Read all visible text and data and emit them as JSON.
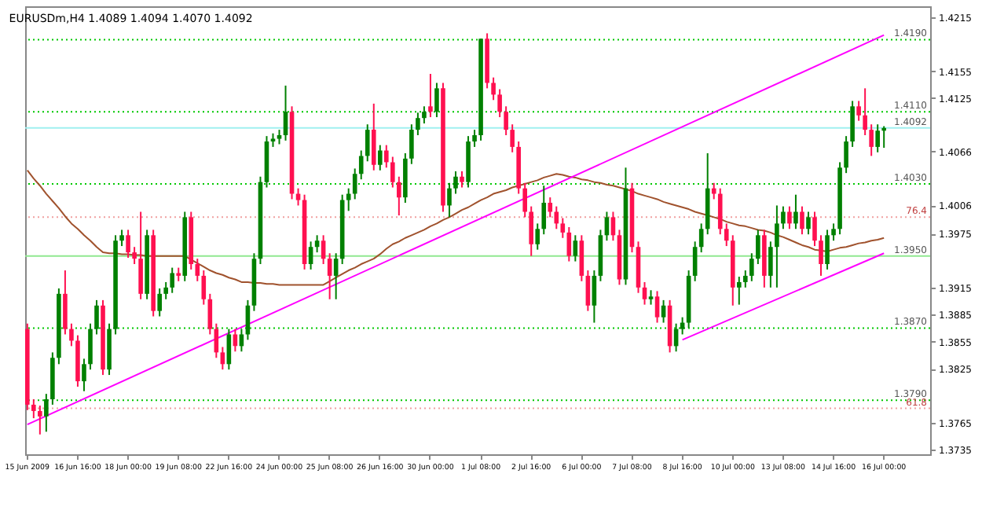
{
  "chart_data": {
    "type": "candlestick",
    "title": "EURUSDm,H4 1.4089 1.4094 1.4070 1.4092",
    "categories": [
      "15 Jun 2009",
      null,
      null,
      null,
      null,
      null,
      null,
      null,
      "16 Jun 16:00",
      null,
      null,
      null,
      null,
      null,
      null,
      null,
      "18 Jun 00:00",
      null,
      null,
      null,
      null,
      null,
      null,
      null,
      "19 Jun 08:00",
      null,
      null,
      null,
      null,
      null,
      null,
      null,
      "22 Jun 16:00",
      null,
      null,
      null,
      null,
      null,
      null,
      null,
      "24 Jun 00:00",
      null,
      null,
      null,
      null,
      null,
      null,
      null,
      "25 Jun 08:00",
      null,
      null,
      null,
      null,
      null,
      null,
      null,
      "26 Jun 16:00",
      null,
      null,
      null,
      null,
      null,
      null,
      null,
      "30 Jun 00:00",
      null,
      null,
      null,
      null,
      null,
      null,
      null,
      "1 Jul 08:00",
      null,
      null,
      null,
      null,
      null,
      null,
      null,
      "2 Jul 16:00",
      null,
      null,
      null,
      null,
      null,
      null,
      null,
      "6 Jul 00:00",
      null,
      null,
      null,
      null,
      null,
      null,
      null,
      "7 Jul 08:00",
      null,
      null,
      null,
      null,
      null,
      null,
      null,
      "8 Jul 16:00",
      null,
      null,
      null,
      null,
      null,
      null,
      null,
      "10 Jul 00:00",
      null,
      null,
      null,
      null,
      null,
      null,
      null,
      "13 Jul 08:00",
      null,
      null,
      null,
      null,
      null,
      null,
      null,
      "14 Jul 16:00",
      null,
      null,
      null,
      null,
      null,
      null,
      null,
      "16 Jul 00:00"
    ],
    "colors": [
      "#ff1050",
      "#ff1050",
      "#ff1050",
      "#008000",
      "#008000",
      "#008000",
      "#ff1050",
      "#ff1050",
      "#ff1050",
      "#008000",
      "#008000",
      "#008000",
      "#ff1050",
      "#008000",
      "#008000",
      "#008000",
      "#ff1050",
      "#ff1050",
      "#ff1050",
      "#008000",
      "#ff1050",
      "#008000",
      "#008000",
      "#008000",
      "#ff1050",
      "#008000",
      "#ff1050",
      "#ff1050",
      "#ff1050",
      "#ff1050",
      "#ff1050",
      "#ff1050",
      "#008000",
      "#ff1050",
      "#008000",
      "#008000",
      "#008000",
      "#008000",
      "#008000",
      "#008000",
      "#008000",
      "#008000",
      "#ff1050",
      "#ff1050",
      "#ff1050",
      "#008000",
      "#008000",
      "#ff1050",
      "#ff1050",
      "#008000",
      "#008000",
      "#008000",
      "#008000",
      "#008000",
      "#008000",
      "#ff1050",
      "#008000",
      "#ff1050",
      "#ff1050",
      "#ff1050",
      "#008000",
      "#008000",
      "#008000",
      "#008000",
      "#ff1050",
      "#008000",
      "#ff1050",
      "#008000",
      "#008000",
      "#ff1050",
      "#008000",
      "#008000",
      "#008000",
      "#ff1050",
      "#ff1050",
      "#ff1050",
      "#ff1050",
      "#ff1050",
      "#ff1050",
      "#ff1050",
      "#ff1050",
      "#008000",
      "#008000",
      "#ff1050",
      "#ff1050",
      "#ff1050",
      "#ff1050",
      "#008000",
      "#ff1050",
      "#ff1050",
      "#008000",
      "#008000",
      "#008000",
      "#ff1050",
      "#ff1050",
      "#008000",
      "#ff1050",
      "#ff1050",
      "#ff1050",
      "#008000",
      "#ff1050",
      "#008000",
      "#ff1050",
      "#008000",
      "#008000",
      "#008000",
      "#008000",
      "#008000",
      "#008000",
      "#ff1050",
      "#ff1050",
      "#ff1050",
      "#ff1050",
      "#008000",
      "#008000",
      "#008000",
      "#008000",
      "#ff1050",
      "#008000",
      "#008000",
      "#008000",
      "#ff1050",
      "#008000",
      "#ff1050",
      "#008000",
      "#ff1050",
      "#ff1050",
      "#008000",
      "#008000",
      "#008000",
      "#008000",
      "#008000",
      "#ff1050",
      "#ff1050",
      "#ff1050",
      "#008000",
      "#008000"
    ],
    "annotations": [
      {
        "text": "76.4",
        "y": 1.3993
      },
      {
        "text": "61.8",
        "y": 1.3781
      }
    ],
    "ohlc": [
      [
        1.3869,
        1.3875,
        1.3779,
        1.3785
      ],
      [
        1.3785,
        1.3791,
        1.377,
        1.3778
      ],
      [
        1.3778,
        1.3784,
        1.3752,
        1.3772
      ],
      [
        1.3772,
        1.3797,
        1.3755,
        1.3791
      ],
      [
        1.3791,
        1.3843,
        1.3785,
        1.3837
      ],
      [
        1.3837,
        1.3914,
        1.383,
        1.3908
      ],
      [
        1.3908,
        1.3934,
        1.3863,
        1.3869
      ],
      [
        1.3869,
        1.3875,
        1.385,
        1.3856
      ],
      [
        1.3856,
        1.3862,
        1.3805,
        1.3811
      ],
      [
        1.3811,
        1.3836,
        1.38,
        1.383
      ],
      [
        1.383,
        1.3875,
        1.3824,
        1.3869
      ],
      [
        1.3869,
        1.3901,
        1.3863,
        1.3895
      ],
      [
        1.3895,
        1.3901,
        1.3818,
        1.3824
      ],
      [
        1.3824,
        1.3875,
        1.3818,
        1.3869
      ],
      [
        1.3869,
        1.3973,
        1.3863,
        1.3967
      ],
      [
        1.3967,
        1.3979,
        1.3961,
        1.3973
      ],
      [
        1.3973,
        1.3979,
        1.3948,
        1.3954
      ],
      [
        1.3954,
        1.396,
        1.3941,
        1.3947
      ],
      [
        1.3947,
        1.3999,
        1.3902,
        1.3908
      ],
      [
        1.3908,
        1.3979,
        1.3902,
        1.3973
      ],
      [
        1.3973,
        1.3979,
        1.3883,
        1.3889
      ],
      [
        1.3889,
        1.3914,
        1.3883,
        1.3908
      ],
      [
        1.3908,
        1.3921,
        1.3902,
        1.3915
      ],
      [
        1.3915,
        1.3937,
        1.3909,
        1.3931
      ],
      [
        1.3931,
        1.3937,
        1.3922,
        1.3928
      ],
      [
        1.3928,
        1.3999,
        1.3922,
        1.3993
      ],
      [
        1.3993,
        1.3999,
        1.3935,
        1.3941
      ],
      [
        1.3941,
        1.3947,
        1.3922,
        1.3928
      ],
      [
        1.3928,
        1.3934,
        1.3896,
        1.3902
      ],
      [
        1.3902,
        1.3908,
        1.3863,
        1.3869
      ],
      [
        1.3869,
        1.3875,
        1.3837,
        1.3843
      ],
      [
        1.3843,
        1.3849,
        1.3824,
        1.383
      ],
      [
        1.383,
        1.3869,
        1.3824,
        1.3863
      ],
      [
        1.3863,
        1.3869,
        1.3844,
        1.385
      ],
      [
        1.385,
        1.3869,
        1.3844,
        1.3863
      ],
      [
        1.3863,
        1.3901,
        1.3857,
        1.3895
      ],
      [
        1.3895,
        1.3953,
        1.3889,
        1.3947
      ],
      [
        1.3947,
        1.4038,
        1.3941,
        1.4032
      ],
      [
        1.4032,
        1.4083,
        1.4026,
        1.4077
      ],
      [
        1.4077,
        1.4086,
        1.4071,
        1.408
      ],
      [
        1.408,
        1.409,
        1.4074,
        1.4084
      ],
      [
        1.4084,
        1.4139,
        1.4078,
        1.411
      ],
      [
        1.411,
        1.4116,
        1.4013,
        1.4019
      ],
      [
        1.4019,
        1.4025,
        1.4006,
        1.4012
      ],
      [
        1.4012,
        1.4018,
        1.3935,
        1.3941
      ],
      [
        1.3941,
        1.3966,
        1.3935,
        1.396
      ],
      [
        1.396,
        1.3973,
        1.3954,
        1.3967
      ],
      [
        1.3967,
        1.3973,
        1.3941,
        1.3947
      ],
      [
        1.3947,
        1.3953,
        1.3902,
        1.3928
      ],
      [
        1.3928,
        1.3953,
        1.3902,
        1.3947
      ],
      [
        1.3947,
        1.4018,
        1.3941,
        1.4012
      ],
      [
        1.4012,
        1.4025,
        1.4,
        1.4019
      ],
      [
        1.4019,
        1.4047,
        1.4013,
        1.4041
      ],
      [
        1.4041,
        1.4067,
        1.4035,
        1.4061
      ],
      [
        1.4061,
        1.4096,
        1.4055,
        1.409
      ],
      [
        1.409,
        1.4119,
        1.4045,
        1.4051
      ],
      [
        1.4051,
        1.4073,
        1.4045,
        1.4067
      ],
      [
        1.4067,
        1.4073,
        1.4048,
        1.4054
      ],
      [
        1.4054,
        1.406,
        1.4026,
        1.4032
      ],
      [
        1.4032,
        1.4038,
        1.3995,
        1.4015
      ],
      [
        1.4015,
        1.4064,
        1.4009,
        1.4058
      ],
      [
        1.4058,
        1.4096,
        1.4052,
        1.409
      ],
      [
        1.409,
        1.4109,
        1.4084,
        1.4103
      ],
      [
        1.4103,
        1.4116,
        1.4097,
        1.411
      ],
      [
        1.4116,
        1.4152,
        1.4104,
        1.411
      ],
      [
        1.411,
        1.4142,
        1.4104,
        1.4136
      ],
      [
        1.4136,
        1.4142,
        1.3999,
        1.4006
      ],
      [
        1.4006,
        1.4031,
        1.3993,
        1.4025
      ],
      [
        1.4025,
        1.4044,
        1.4019,
        1.4038
      ],
      [
        1.4038,
        1.4044,
        1.4026,
        1.4032
      ],
      [
        1.4032,
        1.4083,
        1.4026,
        1.4077
      ],
      [
        1.4077,
        1.409,
        1.4071,
        1.4084
      ],
      [
        1.4084,
        1.4191,
        1.4078,
        1.4191
      ],
      [
        1.4191,
        1.4197,
        1.4136,
        1.4142
      ],
      [
        1.4142,
        1.4148,
        1.4123,
        1.4129
      ],
      [
        1.4129,
        1.4135,
        1.4104,
        1.411
      ],
      [
        1.411,
        1.4116,
        1.4084,
        1.409
      ],
      [
        1.409,
        1.4096,
        1.4065,
        1.4071
      ],
      [
        1.4071,
        1.4077,
        1.4019,
        1.4025
      ],
      [
        1.4025,
        1.4031,
        1.3993,
        1.3999
      ],
      [
        1.3999,
        1.4005,
        1.395,
        1.3963
      ],
      [
        1.3963,
        1.3986,
        1.3957,
        1.398
      ],
      [
        1.398,
        1.4028,
        1.3974,
        1.4009
      ],
      [
        1.4009,
        1.4015,
        1.3993,
        1.3999
      ],
      [
        1.3999,
        1.4005,
        1.398,
        1.3986
      ],
      [
        1.3986,
        1.3992,
        1.397,
        1.3976
      ],
      [
        1.3976,
        1.3982,
        1.3944,
        1.395
      ],
      [
        1.395,
        1.3973,
        1.3944,
        1.3967
      ],
      [
        1.3967,
        1.3973,
        1.3922,
        1.3928
      ],
      [
        1.3928,
        1.3934,
        1.3889,
        1.3895
      ],
      [
        1.3895,
        1.3934,
        1.3876,
        1.3928
      ],
      [
        1.3928,
        1.3979,
        1.3922,
        1.3973
      ],
      [
        1.3973,
        1.3999,
        1.3967,
        1.3993
      ],
      [
        1.3993,
        1.3999,
        1.3967,
        1.3973
      ],
      [
        1.3973,
        1.3979,
        1.3918,
        1.3924
      ],
      [
        1.3924,
        1.4048,
        1.3918,
        1.4025
      ],
      [
        1.4025,
        1.4031,
        1.3954,
        1.396
      ],
      [
        1.396,
        1.3966,
        1.3909,
        1.3915
      ],
      [
        1.3915,
        1.3921,
        1.3896,
        1.3902
      ],
      [
        1.3902,
        1.3912,
        1.3896,
        1.3905
      ],
      [
        1.3905,
        1.3911,
        1.3876,
        1.3882
      ],
      [
        1.3882,
        1.3901,
        1.3876,
        1.3895
      ],
      [
        1.3895,
        1.3901,
        1.3843,
        1.385
      ],
      [
        1.385,
        1.3875,
        1.3844,
        1.3869
      ],
      [
        1.3869,
        1.3882,
        1.3863,
        1.3876
      ],
      [
        1.3876,
        1.3934,
        1.387,
        1.3928
      ],
      [
        1.3928,
        1.3966,
        1.3922,
        1.396
      ],
      [
        1.396,
        1.3986,
        1.3954,
        1.398
      ],
      [
        1.398,
        1.4064,
        1.3974,
        1.4025
      ],
      [
        1.4025,
        1.4031,
        1.4013,
        1.4019
      ],
      [
        1.4019,
        1.4025,
        1.3974,
        1.398
      ],
      [
        1.398,
        1.3986,
        1.3961,
        1.3967
      ],
      [
        1.3967,
        1.3973,
        1.3895,
        1.3915
      ],
      [
        1.3915,
        1.3927,
        1.3896,
        1.3921
      ],
      [
        1.3921,
        1.3934,
        1.3915,
        1.3928
      ],
      [
        1.3928,
        1.3953,
        1.3922,
        1.3947
      ],
      [
        1.3947,
        1.3979,
        1.3941,
        1.3973
      ],
      [
        1.3973,
        1.3979,
        1.3915,
        1.3928
      ],
      [
        1.3928,
        1.3966,
        1.3915,
        1.396
      ],
      [
        1.396,
        1.4006,
        1.3915,
        1.3986
      ],
      [
        1.3986,
        1.4005,
        1.398,
        1.3999
      ],
      [
        1.3999,
        1.4005,
        1.398,
        1.3986
      ],
      [
        1.3986,
        1.4018,
        1.398,
        1.3999
      ],
      [
        1.3999,
        1.4005,
        1.3974,
        1.398
      ],
      [
        1.398,
        1.3999,
        1.3974,
        1.3993
      ],
      [
        1.3993,
        1.3999,
        1.3961,
        1.3967
      ],
      [
        1.3967,
        1.3973,
        1.3928,
        1.3941
      ],
      [
        1.3941,
        1.3979,
        1.3935,
        1.3973
      ],
      [
        1.3973,
        1.3986,
        1.3967,
        1.398
      ],
      [
        1.398,
        1.4054,
        1.3974,
        1.4048
      ],
      [
        1.4048,
        1.4083,
        1.4042,
        1.4077
      ],
      [
        1.4077,
        1.4122,
        1.4071,
        1.4116
      ],
      [
        1.4116,
        1.4122,
        1.41,
        1.4106
      ],
      [
        1.4106,
        1.4136,
        1.4084,
        1.409
      ],
      [
        1.409,
        1.4096,
        1.4061,
        1.4071
      ],
      [
        1.4071,
        1.4096,
        1.4065,
        1.4089
      ],
      [
        1.4089,
        1.4094,
        1.407,
        1.4092
      ]
    ],
    "series": [
      {
        "type": "line",
        "color": "#a0522d",
        "values": [
          1.4045,
          1.4036,
          1.4028,
          1.4019,
          1.4011,
          1.4003,
          1.3994,
          1.3986,
          1.398,
          1.3973,
          1.3967,
          1.396,
          1.3954,
          1.3953,
          1.3953,
          1.3952,
          1.3952,
          1.3951,
          1.3951,
          1.395,
          1.395,
          1.395,
          1.395,
          1.395,
          1.395,
          1.395,
          1.3946,
          1.3942,
          1.3938,
          1.3934,
          1.3931,
          1.3929,
          1.3926,
          1.3924,
          1.3921,
          1.3921,
          1.392,
          1.392,
          1.3919,
          1.3919,
          1.3918,
          1.3918,
          1.3918,
          1.3918,
          1.3918,
          1.3918,
          1.3918,
          1.3918,
          1.3922,
          1.3926,
          1.393,
          1.3934,
          1.3937,
          1.3941,
          1.3944,
          1.3947,
          1.3952,
          1.3958,
          1.3963,
          1.3966,
          1.397,
          1.3973,
          1.3976,
          1.3979,
          1.3983,
          1.3986,
          1.399,
          1.3993,
          1.3997,
          1.4001,
          1.4004,
          1.4008,
          1.4012,
          1.4015,
          1.4019,
          1.4021,
          1.4023,
          1.4026,
          1.4028,
          1.403,
          1.4032,
          1.4034,
          1.4037,
          1.4039,
          1.4041,
          1.404,
          1.4038,
          1.4037,
          1.4035,
          1.4034,
          1.4032,
          1.4031,
          1.4029,
          1.4028,
          1.4026,
          1.4024,
          1.4022,
          1.4019,
          1.4017,
          1.4015,
          1.4013,
          1.401,
          1.4008,
          1.4006,
          1.4004,
          1.4002,
          1.3999,
          1.3997,
          1.3995,
          1.3993,
          1.3991,
          1.3988,
          1.3986,
          1.3984,
          1.3983,
          1.3981,
          1.3979,
          1.3978,
          1.3976,
          1.3973,
          1.3971,
          1.3968,
          1.3965,
          1.3962,
          1.396,
          1.3957,
          1.3956,
          1.3955,
          1.3957,
          1.3959,
          1.396,
          1.3962,
          1.3964,
          1.3965,
          1.3967,
          1.3968,
          1.397
        ]
      },
      {
        "type": "line",
        "color": "#ff00ff",
        "values": [
          1.3763,
          null,
          null,
          null,
          null,
          null,
          null,
          null,
          null,
          null,
          null,
          null,
          null,
          null,
          null,
          null,
          null,
          null,
          null,
          null,
          null,
          null,
          null,
          null,
          null,
          null,
          null,
          null,
          null,
          null,
          null,
          null,
          null,
          null,
          null,
          null,
          null,
          null,
          null,
          null,
          null,
          null,
          null,
          null,
          null,
          null,
          null,
          null,
          null,
          null,
          null,
          null,
          null,
          null,
          null,
          null,
          null,
          null,
          null,
          null,
          null,
          null,
          null,
          null,
          null,
          null,
          null,
          null,
          null,
          null,
          null,
          null,
          null,
          null,
          null,
          null,
          null,
          null,
          null,
          null,
          null,
          null,
          null,
          null,
          null,
          null,
          null,
          null,
          null,
          null,
          null,
          null,
          null,
          null,
          null,
          null,
          null,
          null,
          null,
          null,
          null,
          null,
          null,
          null,
          null,
          null,
          null,
          null,
          null,
          null,
          null,
          null,
          null,
          null,
          null,
          null,
          null,
          null,
          null,
          null,
          null,
          null,
          null,
          null,
          null,
          null,
          null,
          null,
          null,
          null,
          null,
          null,
          null,
          null,
          null,
          null,
          1.4195
        ]
      },
      {
        "type": "line",
        "color": "#ff00ff",
        "values": [
          null,
          null,
          null,
          null,
          null,
          null,
          null,
          null,
          null,
          null,
          null,
          null,
          null,
          null,
          null,
          null,
          null,
          null,
          null,
          null,
          null,
          null,
          null,
          null,
          null,
          null,
          null,
          null,
          null,
          null,
          null,
          null,
          null,
          null,
          null,
          null,
          null,
          null,
          null,
          null,
          null,
          null,
          null,
          null,
          null,
          null,
          null,
          null,
          null,
          null,
          null,
          null,
          null,
          null,
          null,
          null,
          null,
          null,
          null,
          null,
          null,
          null,
          null,
          null,
          null,
          null,
          null,
          null,
          null,
          null,
          null,
          null,
          null,
          null,
          null,
          null,
          null,
          null,
          null,
          null,
          null,
          null,
          null,
          null,
          null,
          null,
          null,
          null,
          null,
          null,
          null,
          null,
          null,
          null,
          null,
          null,
          null,
          null,
          null,
          null,
          null,
          null,
          null,
          null,
          1.3857,
          null,
          null,
          null,
          null,
          null,
          null,
          null,
          null,
          null,
          null,
          null,
          null,
          null,
          null,
          null,
          null,
          null,
          null,
          null,
          null,
          null,
          null,
          null,
          null,
          null,
          null,
          null,
          null,
          null,
          null,
          null,
          1.3953
        ]
      }
    ],
    "ref_lines": [
      {
        "axis": "y",
        "value": 1.419,
        "label": "1.4190",
        "color": "#00c800",
        "line_style": "dotted"
      },
      {
        "axis": "y",
        "value": 1.411,
        "label": "1.4110",
        "color": "#00c800",
        "line_style": "dotted"
      },
      {
        "axis": "y",
        "value": 1.4092,
        "label": "1.4092",
        "color": "#a0f0f0",
        "line_style": "solid"
      },
      {
        "axis": "y",
        "value": 1.403,
        "label": "1.4030",
        "color": "#00c800",
        "line_style": "dotted"
      },
      {
        "axis": "y",
        "value": 1.3993,
        "color": "#f0a0a0",
        "line_style": "dotted"
      },
      {
        "axis": "y",
        "value": 1.395,
        "label": "1.3950",
        "color": "#90e890",
        "line_style": "solid"
      },
      {
        "axis": "y",
        "value": 1.387,
        "label": "1.3870",
        "color": "#00c800",
        "line_style": "dotted"
      },
      {
        "axis": "y",
        "value": 1.379,
        "label": "1.3790",
        "color": "#00c800",
        "line_style": "dotted"
      },
      {
        "axis": "y",
        "value": 1.3781,
        "color": "#f0a0a0",
        "line_style": "dotted"
      }
    ],
    "ylim": [
      1.373,
      1.4227
    ],
    "yticks": [
      1.4215,
      1.4155,
      1.4125,
      1.4066,
      1.4006,
      1.3975,
      1.3915,
      1.3885,
      1.3855,
      1.3825,
      1.3765,
      1.3735
    ]
  }
}
